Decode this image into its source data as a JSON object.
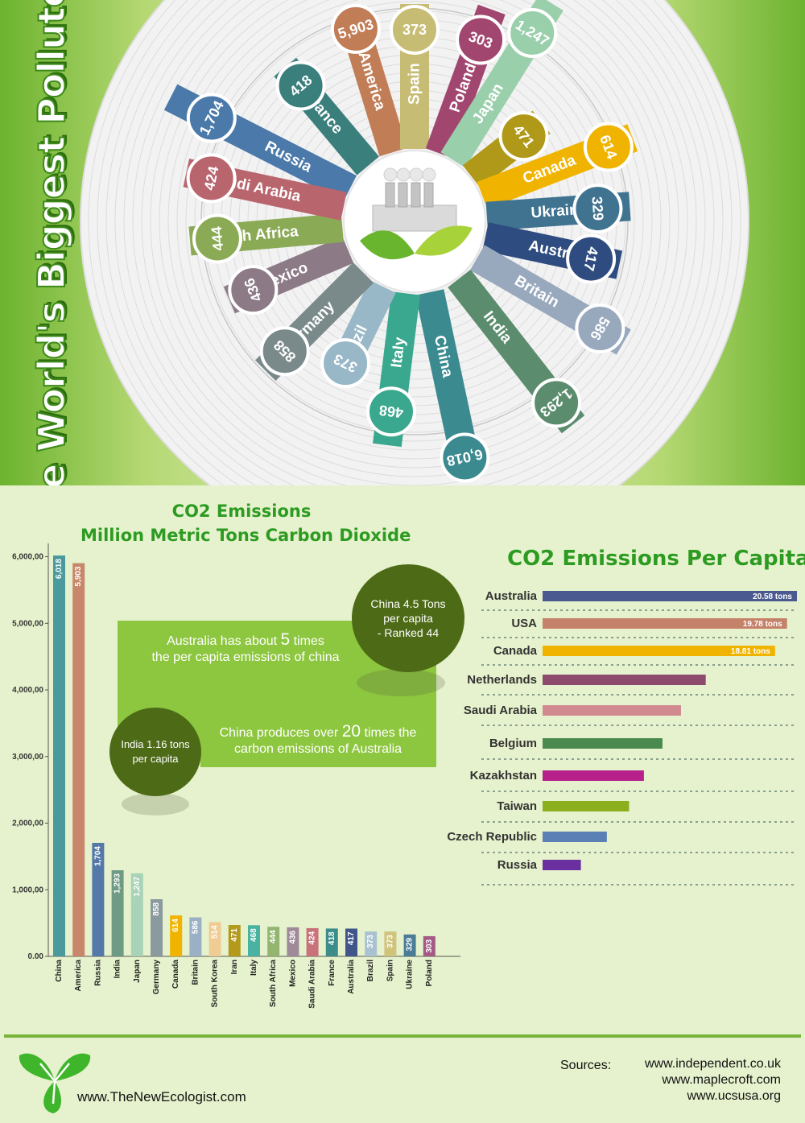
{
  "title": "The World's Biggest Polluters",
  "radial": {
    "entries": [
      {
        "country": "Russia",
        "value": "1,704",
        "color": "#4a79aa"
      },
      {
        "country": "France",
        "value": "418",
        "color": "#3a7f7c"
      },
      {
        "country": "America",
        "value": "5,903",
        "color": "#c17d56"
      },
      {
        "country": "Spain",
        "value": "373",
        "color": "#c6bc73"
      },
      {
        "country": "Poland",
        "value": "303",
        "color": "#a0466f"
      },
      {
        "country": "Japan",
        "value": "1,247",
        "color": "#9acfab"
      },
      {
        "country": "Iran",
        "value": "471",
        "color": "#b09818"
      },
      {
        "country": "Canada",
        "value": "614",
        "color": "#f0b400"
      },
      {
        "country": "Ukraine",
        "value": "329",
        "color": "#3f7390"
      },
      {
        "country": "Australia",
        "value": "417",
        "color": "#2e4c80"
      },
      {
        "country": "Britain",
        "value": "586",
        "color": "#98a8bd"
      },
      {
        "country": "India",
        "value": "1,293",
        "color": "#5b8c6d"
      },
      {
        "country": "China",
        "value": "6,018",
        "color": "#3a8a90"
      },
      {
        "country": "Italy",
        "value": "468",
        "color": "#3aa88e"
      },
      {
        "country": "Brazil",
        "value": "373",
        "color": "#98b8c8"
      },
      {
        "country": "Germany",
        "value": "858",
        "color": "#7a8a8a"
      },
      {
        "country": "Mexico",
        "value": "436",
        "color": "#8c7a86"
      },
      {
        "country": "South Africa",
        "value": "444",
        "color": "#8aaa55"
      },
      {
        "country": "Saudi Arabia",
        "value": "424",
        "color": "#b8656e"
      }
    ]
  },
  "chart_data": [
    {
      "type": "bar",
      "title": "CO2 Emissions",
      "subtitle": "Million Metric Tons Carbon Dioxide",
      "categories": [
        "China",
        "America",
        "Russia",
        "India",
        "Japan",
        "Germany",
        "Canada",
        "Britain",
        "South Korea",
        "Iran",
        "Italy",
        "South Africa",
        "Mexico",
        "Saudi Arabia",
        "France",
        "Australia",
        "Brazil",
        "Spain",
        "Ukraine",
        "Poland"
      ],
      "values": [
        6018,
        5903,
        1704,
        1293,
        1247,
        858,
        614,
        586,
        514,
        471,
        468,
        444,
        436,
        424,
        418,
        417,
        373,
        373,
        329,
        303
      ],
      "value_labels": [
        "6,018",
        "5,903",
        "1,704",
        "1,293",
        "1,247",
        "858",
        "614",
        "586",
        "514",
        "471",
        "468",
        "444",
        "436",
        "424",
        "418",
        "417",
        "373",
        "373",
        "329",
        "303"
      ],
      "colors": [
        "#4a9a9d",
        "#c8876a",
        "#5479a8",
        "#6f9b84",
        "#a9d3b6",
        "#8a9a9e",
        "#f0b400",
        "#9ab0c5",
        "#f0cc95",
        "#b39a1c",
        "#4ab2a0",
        "#94b570",
        "#9e8a98",
        "#c9727a",
        "#3c8c8a",
        "#40558a",
        "#a9c2d2",
        "#d0c37c",
        "#4c7d98",
        "#a45a84"
      ],
      "yticks": [
        "0.00",
        "1,000,00",
        "2,000,00",
        "3,000,00",
        "4,000,00",
        "5,000,00",
        "6,000,00"
      ],
      "ylim": [
        0,
        6200
      ],
      "grid": false
    },
    {
      "type": "bar",
      "orientation": "horizontal",
      "title": "CO2 Emissions Per Capita",
      "categories": [
        "Australia",
        "USA",
        "Canada",
        "Netherlands",
        "Saudi Arabia",
        "Belgium",
        "Kazakhstan",
        "Taiwan",
        "Czech Republic",
        "Russia"
      ],
      "values": [
        20.58,
        19.78,
        18.81,
        13.2,
        11.2,
        9.7,
        8.2,
        7.0,
        5.2,
        3.1
      ],
      "value_labels": [
        "20.58 tons",
        "19.78 tons",
        "18.81 tons",
        "",
        "",
        "",
        "",
        "",
        "",
        ""
      ],
      "colors": [
        "#4a5a90",
        "#c5826a",
        "#f0b400",
        "#8c4a6c",
        "#d08a90",
        "#4a8a4e",
        "#b8208c",
        "#8caf1e",
        "#5a80b5",
        "#6a30a0"
      ]
    }
  ],
  "callouts": {
    "line1_pre": "Australia has about ",
    "line1_num": "5",
    "line1_post": " times",
    "line2": "the per capita emissions of china",
    "line3_pre": "China produces over ",
    "line3_num": "20",
    "line3_post": " times the",
    "line4": "carbon emissions of Australia",
    "china_bubble": [
      "China 4.5 Tons",
      "per capita",
      "- Ranked 44"
    ],
    "india_bubble": [
      "India 1.16 tons",
      "per capita"
    ]
  },
  "footer": {
    "site": "www.TheNewEcologist.com",
    "sources_label": "Sources:",
    "sources": [
      "www.independent.co.uk",
      "www.maplecroft.com",
      "www.ucsusa.org"
    ]
  },
  "colors": {
    "title_green": "#2d9b22",
    "accent_green": "#8dc63f",
    "bubble": "#4d6a17"
  }
}
